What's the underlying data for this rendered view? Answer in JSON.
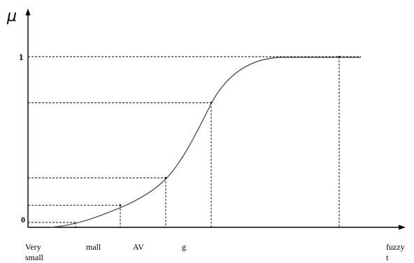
{
  "chart_data": {
    "type": "line",
    "ylabel": "μ",
    "origin_label": "0",
    "ytick_labels": [
      "1"
    ],
    "ylim": [
      0,
      1
    ],
    "x_labels": [
      {
        "key": "very_small",
        "lines": [
          "Very",
          "small"
        ]
      },
      {
        "key": "small",
        "lines": [
          "mall"
        ]
      },
      {
        "key": "av",
        "lines": [
          "AV"
        ]
      },
      {
        "key": "big",
        "lines": [
          "g"
        ]
      },
      {
        "key": "very_big",
        "lines": []
      },
      {
        "key": "fuzzy",
        "lines": [
          "fuzzy",
          "t"
        ]
      }
    ],
    "marked_points": [
      {
        "x": "small",
        "y": 0.13
      },
      {
        "x": "AV",
        "y": 0.29
      },
      {
        "x": "big",
        "y": 0.73
      },
      {
        "x": "very big",
        "y": 1.0
      }
    ],
    "curve": "S-shaped membership function rising from 0 to 1, then constant at 1"
  }
}
